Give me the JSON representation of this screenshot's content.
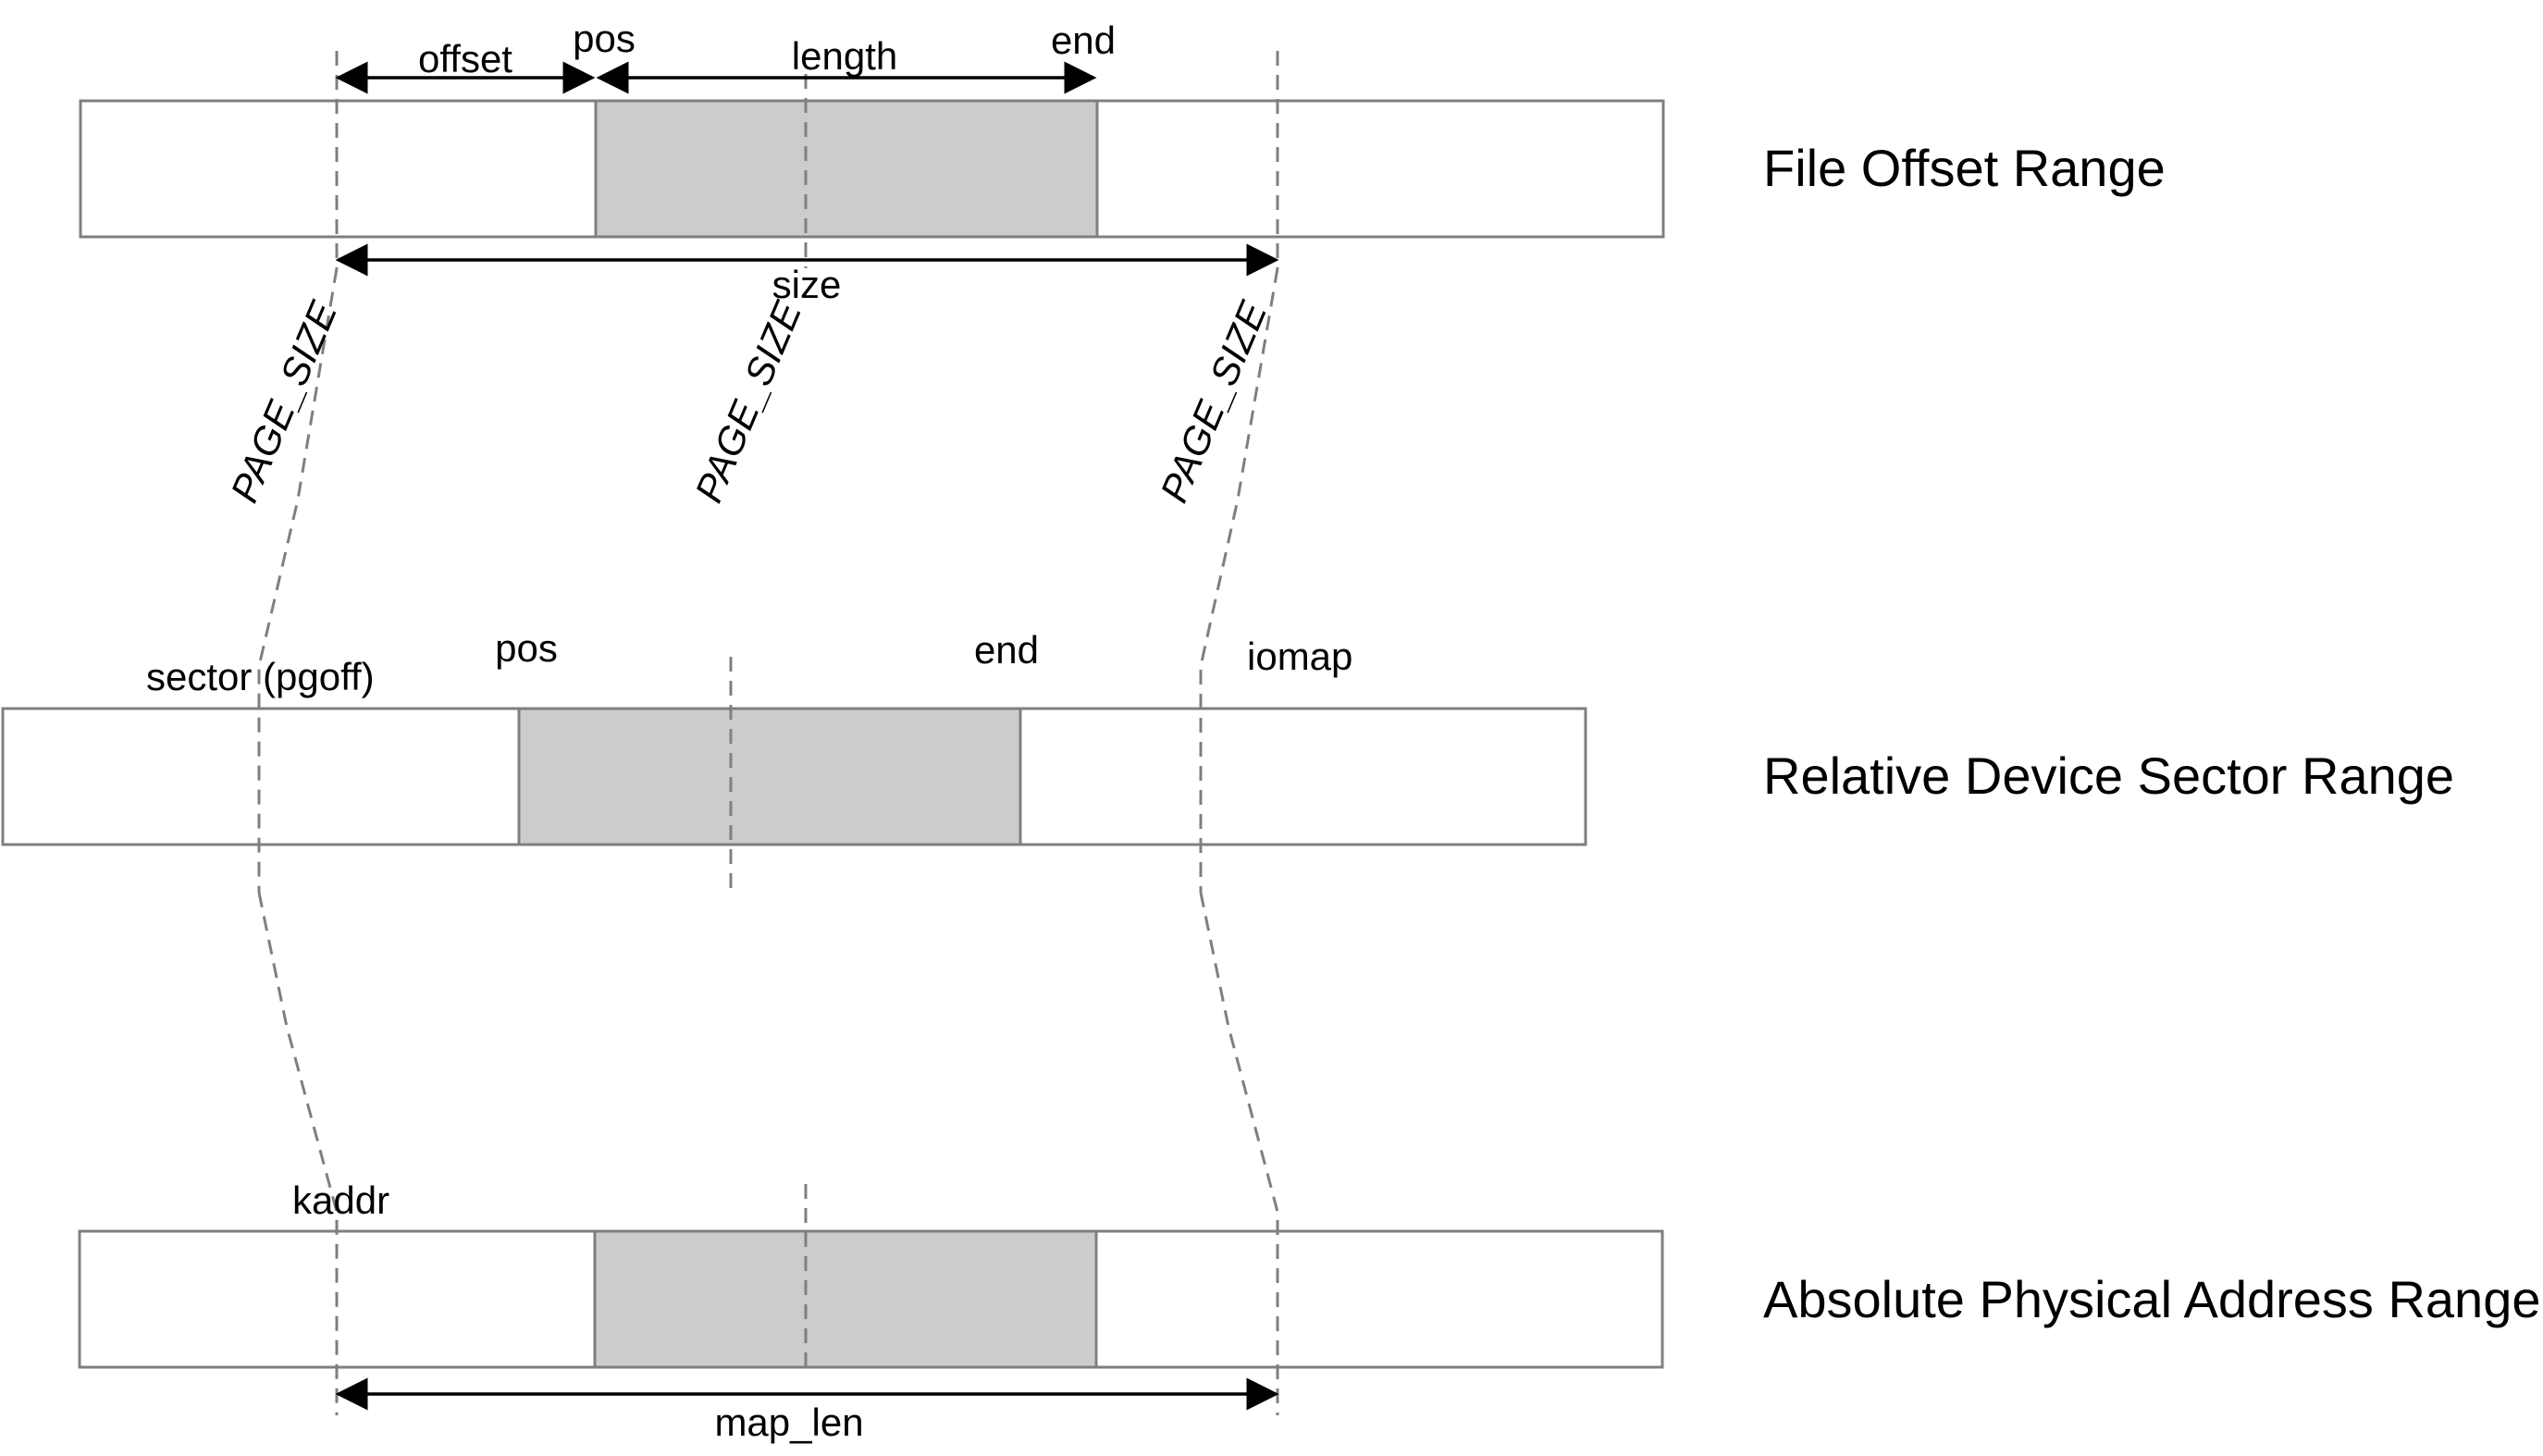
{
  "labels": {
    "offset": "offset",
    "pos_top": "pos",
    "length": "length",
    "end_top": "end",
    "size": "size",
    "page_size_1": "PAGE_SIZE",
    "page_size_2": "PAGE_SIZE",
    "page_size_3": "PAGE_SIZE",
    "sector": "sector (pgoff)",
    "pos_mid": "pos",
    "end_mid": "end",
    "iomap": "iomap",
    "kaddr": "kaddr",
    "map_len": "map_len"
  },
  "ranges": {
    "file": "File Offset Range",
    "sector": "Relative Device Sector Range",
    "physical": "Absolute Physical Address Range"
  }
}
